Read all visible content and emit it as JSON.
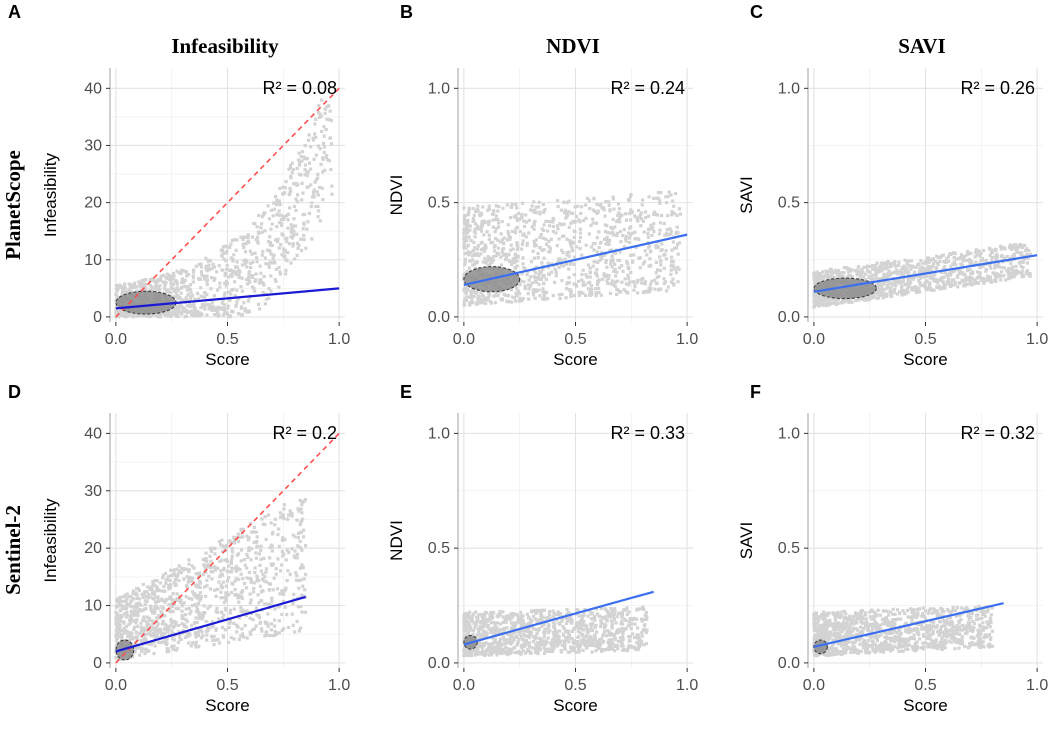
{
  "column_titles": [
    "Infeasibility",
    "NDVI",
    "SAVI"
  ],
  "row_titles": [
    "PlanetScope",
    "Sentinel-2"
  ],
  "chart_data": [
    {
      "panel": "A",
      "type": "scatter",
      "title": "Infeasibility",
      "xlabel": "Score",
      "ylabel": "Infeasibility",
      "xlim": [
        0.0,
        1.0
      ],
      "ylim": [
        0,
        40
      ],
      "xticks": [
        "0.0",
        "0.5",
        "1.0"
      ],
      "yticks": [
        "0",
        "10",
        "20",
        "30",
        "40"
      ],
      "r2": "R² = 0.08",
      "regression_line": {
        "x": [
          0.0,
          1.0
        ],
        "y": [
          1.5,
          5.0
        ],
        "color": "#1a1ad4"
      },
      "identity_line": {
        "x": [
          0.0,
          1.0
        ],
        "y": [
          0,
          40
        ],
        "color": "#ff4d4d",
        "style": "dashed"
      },
      "density_region": {
        "x": [
          0.0,
          0.27
        ],
        "y": [
          0.5,
          4.5
        ]
      },
      "cloud": {
        "shape": "exp",
        "base": 1.5,
        "top": 35,
        "power": 3.2,
        "halfwidth": 4,
        "noise": 2.5
      }
    },
    {
      "panel": "B",
      "type": "scatter",
      "title": "NDVI",
      "xlabel": "Score",
      "ylabel": "NDVI",
      "xlim": [
        0.0,
        1.0
      ],
      "ylim": [
        0.0,
        1.0
      ],
      "xticks": [
        "0.0",
        "0.5",
        "1.0"
      ],
      "yticks": [
        "0.0",
        "0.5",
        "1.0"
      ],
      "r2": "R² = 0.24",
      "regression_line": {
        "x": [
          0.0,
          1.0
        ],
        "y": [
          0.14,
          0.36
        ],
        "color": "#3b6ff0"
      },
      "density_region": {
        "x": [
          0.0,
          0.25
        ],
        "y": [
          0.11,
          0.22
        ]
      },
      "cloud": {
        "shape": "band",
        "lowA": 0.05,
        "lowB": 0.12,
        "highA": 0.48,
        "highB": 0.56
      }
    },
    {
      "panel": "C",
      "type": "scatter",
      "title": "SAVI",
      "xlabel": "Score",
      "ylabel": "SAVI",
      "xlim": [
        0.0,
        1.0
      ],
      "ylim": [
        0.0,
        1.0
      ],
      "xticks": [
        "0.0",
        "0.5",
        "1.0"
      ],
      "yticks": [
        "0.0",
        "0.5",
        "1.0"
      ],
      "r2": "R² = 0.26",
      "regression_line": {
        "x": [
          0.0,
          1.0
        ],
        "y": [
          0.11,
          0.27
        ],
        "color": "#3b6ff0"
      },
      "density_region": {
        "x": [
          0.0,
          0.28
        ],
        "y": [
          0.08,
          0.17
        ]
      },
      "cloud": {
        "shape": "band",
        "lowA": 0.04,
        "lowB": 0.18,
        "highA": 0.2,
        "highB": 0.33
      }
    },
    {
      "panel": "D",
      "type": "scatter",
      "title": "",
      "xlabel": "Score",
      "ylabel": "Infeasibility",
      "xlim": [
        0.0,
        1.0
      ],
      "ylim": [
        0,
        40
      ],
      "xticks": [
        "0.0",
        "0.5",
        "1.0"
      ],
      "yticks": [
        "0",
        "10",
        "20",
        "30",
        "40"
      ],
      "r2": "R² = 0.2",
      "regression_line": {
        "x": [
          0.0,
          0.85
        ],
        "y": [
          2.0,
          11.5
        ],
        "color": "#1a1ad4"
      },
      "identity_line": {
        "x": [
          0.0,
          1.0
        ],
        "y": [
          0,
          40
        ],
        "color": "#ff4d4d",
        "style": "dashed"
      },
      "density_region": {
        "x": [
          0.0,
          0.08
        ],
        "y": [
          0.5,
          4.0
        ]
      },
      "cloud": {
        "shape": "linear",
        "baseLow": 0.5,
        "baseHigh": 11,
        "slopeLow": 6,
        "slopeHigh": 22,
        "xmax": 0.85
      }
    },
    {
      "panel": "E",
      "type": "scatter",
      "title": "",
      "xlabel": "Score",
      "ylabel": "NDVI",
      "xlim": [
        0.0,
        1.0
      ],
      "ylim": [
        0.0,
        1.0
      ],
      "xticks": [
        "0.0",
        "0.5",
        "1.0"
      ],
      "yticks": [
        "0.0",
        "0.5",
        "1.0"
      ],
      "r2": "R² = 0.33",
      "regression_line": {
        "x": [
          0.0,
          0.85
        ],
        "y": [
          0.08,
          0.31
        ],
        "color": "#3b6ff0"
      },
      "density_region": {
        "x": [
          0.0,
          0.06
        ],
        "y": [
          0.06,
          0.12
        ]
      },
      "cloud": {
        "shape": "band",
        "lowA": 0.03,
        "lowB": 0.06,
        "highA": 0.22,
        "highB": 0.25,
        "xmax": 0.82
      }
    },
    {
      "panel": "F",
      "type": "scatter",
      "title": "",
      "xlabel": "Score",
      "ylabel": "SAVI",
      "xlim": [
        0.0,
        1.0
      ],
      "ylim": [
        0.0,
        1.0
      ],
      "xticks": [
        "0.0",
        "0.5",
        "1.0"
      ],
      "yticks": [
        "0.0",
        "0.5",
        "1.0"
      ],
      "r2": "R² = 0.32",
      "regression_line": {
        "x": [
          0.0,
          0.85
        ],
        "y": [
          0.07,
          0.26
        ],
        "color": "#3b6ff0"
      },
      "density_region": {
        "x": [
          0.0,
          0.06
        ],
        "y": [
          0.04,
          0.1
        ]
      },
      "cloud": {
        "shape": "band",
        "lowA": 0.03,
        "lowB": 0.08,
        "highA": 0.22,
        "highB": 0.26,
        "xmax": 0.8
      }
    }
  ]
}
